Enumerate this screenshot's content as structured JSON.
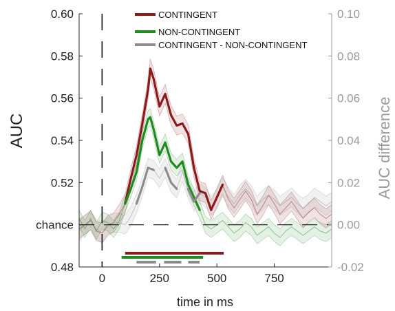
{
  "chart_data": {
    "type": "line",
    "xlabel": "time in ms",
    "ylabel": "AUC",
    "y2label": "AUC difference",
    "xlim": [
      -100,
      1000
    ],
    "ylim": [
      0.48,
      0.6
    ],
    "y2lim": [
      -0.02,
      0.1
    ],
    "x_ticks": [
      0,
      250,
      500,
      750
    ],
    "x_tick_labels": [
      "0",
      "250",
      "500",
      "750"
    ],
    "y_ticks": [
      0.48,
      0.5,
      0.52,
      0.54,
      0.56,
      0.58,
      0.6
    ],
    "y_tick_labels": [
      "0.48",
      "chance",
      "0.52",
      "0.54",
      "0.56",
      "0.58",
      "0.60"
    ],
    "y2_ticks": [
      -0.02,
      0.0,
      0.02,
      0.04,
      0.06,
      0.08,
      0.1
    ],
    "y2_tick_labels": [
      "-0.02",
      "0.00",
      "0.02",
      "0.04",
      "0.06",
      "0.08",
      "0.10"
    ],
    "chance_level": 0.5,
    "legend_position": "top-center",
    "grid": false,
    "series": [
      {
        "name": "CONTINGENT",
        "color": "#8b1a1a",
        "axis": "left",
        "x": [
          -100,
          -75,
          -50,
          -25,
          0,
          25,
          50,
          75,
          100,
          125,
          150,
          175,
          200,
          210,
          225,
          250,
          275,
          300,
          325,
          350,
          375,
          400,
          425,
          450,
          475,
          500,
          525,
          550,
          575,
          600,
          625,
          650,
          675,
          700,
          725,
          750,
          775,
          800,
          825,
          850,
          875,
          900,
          925,
          950,
          975,
          1000
        ],
        "y": [
          0.498,
          0.5,
          0.502,
          0.497,
          0.496,
          0.5,
          0.501,
          0.505,
          0.51,
          0.522,
          0.533,
          0.548,
          0.564,
          0.574,
          0.569,
          0.556,
          0.562,
          0.552,
          0.547,
          0.548,
          0.543,
          0.527,
          0.516,
          0.515,
          0.507,
          0.513,
          0.519,
          0.512,
          0.508,
          0.512,
          0.516,
          0.512,
          0.505,
          0.509,
          0.514,
          0.51,
          0.505,
          0.508,
          0.511,
          0.507,
          0.503,
          0.506,
          0.508,
          0.505,
          0.503,
          0.505
        ],
        "significant_x": [
          [
            100,
            530
          ]
        ]
      },
      {
        "name": "NON-CONTINGENT",
        "color": "#1f8a1f",
        "axis": "left",
        "x": [
          -100,
          -75,
          -50,
          -25,
          0,
          25,
          50,
          75,
          100,
          125,
          150,
          175,
          200,
          210,
          225,
          250,
          275,
          300,
          325,
          350,
          375,
          400,
          425,
          450,
          475,
          500,
          525,
          550,
          575,
          600,
          625,
          650,
          675,
          700,
          725,
          750,
          775,
          800,
          825,
          850,
          875,
          900,
          925,
          950,
          975,
          1000
        ],
        "y": [
          0.503,
          0.498,
          0.503,
          0.497,
          0.502,
          0.501,
          0.498,
          0.502,
          0.51,
          0.517,
          0.525,
          0.54,
          0.55,
          0.551,
          0.545,
          0.533,
          0.539,
          0.53,
          0.527,
          0.53,
          0.519,
          0.513,
          0.507,
          0.5,
          0.498,
          0.5,
          0.502,
          0.499,
          0.496,
          0.498,
          0.501,
          0.499,
          0.495,
          0.497,
          0.499,
          0.496,
          0.494,
          0.497,
          0.499,
          0.497,
          0.495,
          0.497,
          0.499,
          0.497,
          0.496,
          0.498
        ],
        "significant_x": [
          [
            85,
            440
          ]
        ]
      },
      {
        "name": "CONTINGENT - NON-CONTINGENT",
        "color": "#8c8c8c",
        "axis": "right",
        "x": [
          -100,
          -75,
          -50,
          -25,
          0,
          25,
          50,
          75,
          100,
          125,
          150,
          175,
          200,
          225,
          250,
          275,
          300,
          325,
          350,
          375,
          400,
          425,
          450,
          475,
          500,
          525,
          550,
          575,
          600,
          625,
          650,
          675,
          700,
          725,
          750,
          775,
          800,
          825,
          850,
          875,
          900,
          925,
          950,
          975,
          1000
        ],
        "y": [
          -0.003,
          0.0,
          0.002,
          -0.002,
          -0.004,
          -0.001,
          0.001,
          0.001,
          0.0,
          0.004,
          0.01,
          0.018,
          0.027,
          0.026,
          0.022,
          0.027,
          0.02,
          0.017,
          0.025,
          0.017,
          0.011,
          0.015,
          0.013,
          0.009,
          0.012,
          0.018,
          0.013,
          0.01,
          0.014,
          0.017,
          0.014,
          0.009,
          0.012,
          0.014,
          0.012,
          0.009,
          0.011,
          0.013,
          0.01,
          0.008,
          0.01,
          0.013,
          0.011,
          0.009,
          0.011
        ],
        "significant_x": [
          [
            150,
            235
          ],
          [
            270,
            345
          ],
          [
            375,
            425
          ]
        ]
      }
    ]
  }
}
